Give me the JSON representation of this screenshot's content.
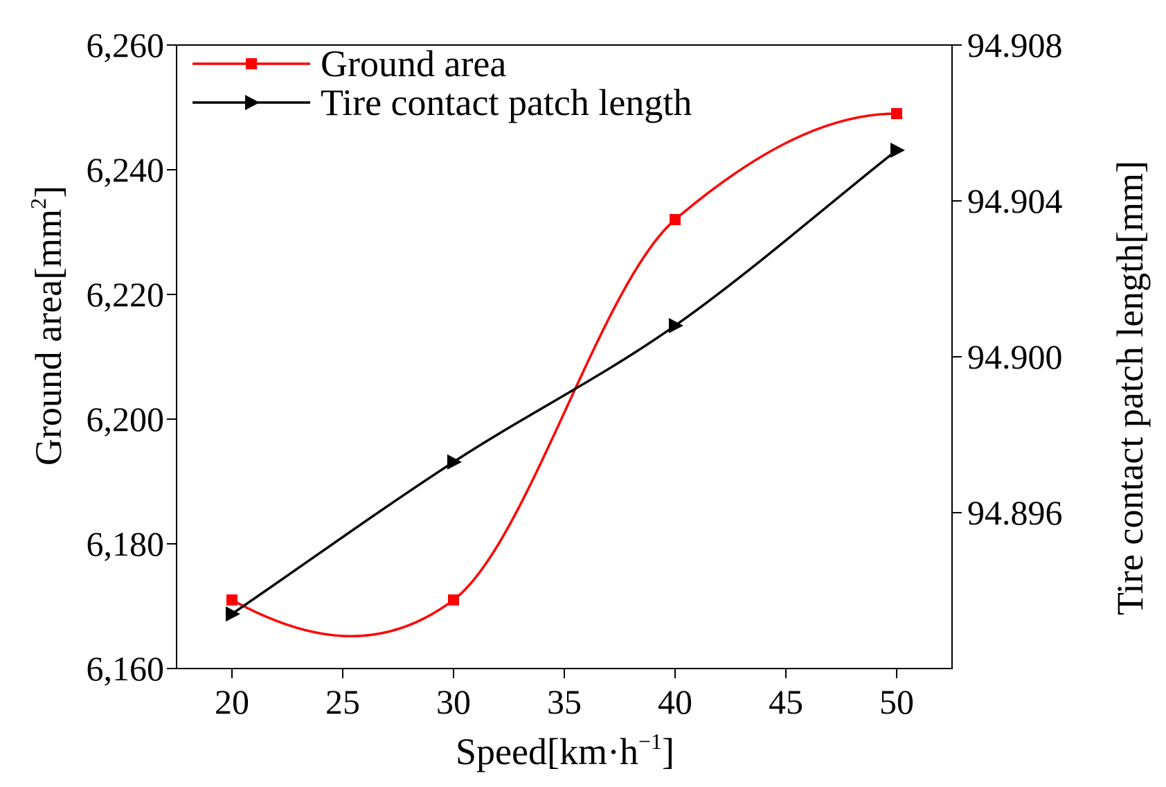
{
  "chart_data": {
    "type": "line",
    "x": [
      20,
      30,
      40,
      50
    ],
    "xlabel": "Speed[km·h",
    "xlabel_sup": "−1",
    "xlabel_end": "]",
    "xlim": [
      17.5,
      52.5
    ],
    "xticks": [
      20,
      25,
      30,
      35,
      40,
      45,
      50
    ],
    "ylabel_left": "Ground area[mm",
    "ylabel_left_sup": "2",
    "ylabel_left_end": "]",
    "ylim_left": [
      6160,
      6260
    ],
    "yticks_left": [
      6160,
      6180,
      6200,
      6220,
      6240,
      6260
    ],
    "yticks_left_labels": [
      "6,160",
      "6,180",
      "6,200",
      "6,220",
      "6,240",
      "6,260"
    ],
    "ylabel_right": "Tire contact patch length[mm]",
    "ylim_right": [
      94.892,
      94.908
    ],
    "yticks_right": [
      94.896,
      94.9,
      94.904,
      94.908
    ],
    "yticks_right_labels": [
      "94.896",
      "94.900",
      "94.904",
      "94.908"
    ],
    "grid": false,
    "legend_position": "top-left",
    "series": [
      {
        "name": "Ground area",
        "axis": "left",
        "color": "#ff0000",
        "marker": "square",
        "values": [
          6171,
          6171,
          6232,
          6249
        ]
      },
      {
        "name": "Tire contact patch length",
        "axis": "right",
        "color": "#000000",
        "marker": "triangle-right",
        "values": [
          94.8934,
          94.8973,
          94.9008,
          94.9053
        ]
      }
    ]
  }
}
